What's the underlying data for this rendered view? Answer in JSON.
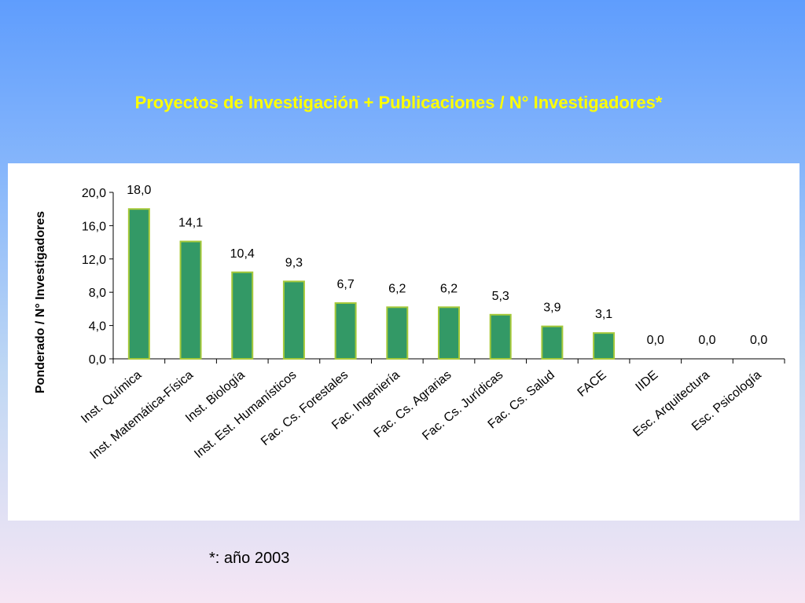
{
  "slide": {
    "title": "Proyectos de Investigación + Publicaciones / N° Investigadores*",
    "footnote": "*: año 2003"
  },
  "colors": {
    "bar_fill": "#339966",
    "bar_stroke": "#a6c93a",
    "title_color": "#ffff00"
  },
  "chart_data": {
    "type": "bar",
    "title": "",
    "xlabel": "",
    "ylabel": "Ponderado / N° Investigadores",
    "ylim": [
      0,
      20
    ],
    "yticks": [
      "0,0",
      "4,0",
      "8,0",
      "12,0",
      "16,0",
      "20,0"
    ],
    "grid": false,
    "categories": [
      "Inst. Química",
      "Inst. Matemática-Física",
      "Inst. Biología",
      "Inst. Est. Humanísticos",
      "Fac. Cs. Forestales",
      "Fac. Ingeniería",
      "Fac. Cs. Agrarias",
      "Fac. Cs. Jurídicas",
      "Fac. Cs. Salud",
      "FACE",
      "IIDE",
      "Esc. Arquitectura",
      "Esc. Psicología"
    ],
    "values": [
      18.0,
      14.1,
      10.4,
      9.3,
      6.7,
      6.2,
      6.2,
      5.3,
      3.9,
      3.1,
      0.0,
      0.0,
      0.0
    ],
    "data_labels": [
      "18,0",
      "14,1",
      "10,4",
      "9,3",
      "6,7",
      "6,2",
      "6,2",
      "5,3",
      "3,9",
      "3,1",
      "0,0",
      "0,0",
      "0,0"
    ]
  }
}
